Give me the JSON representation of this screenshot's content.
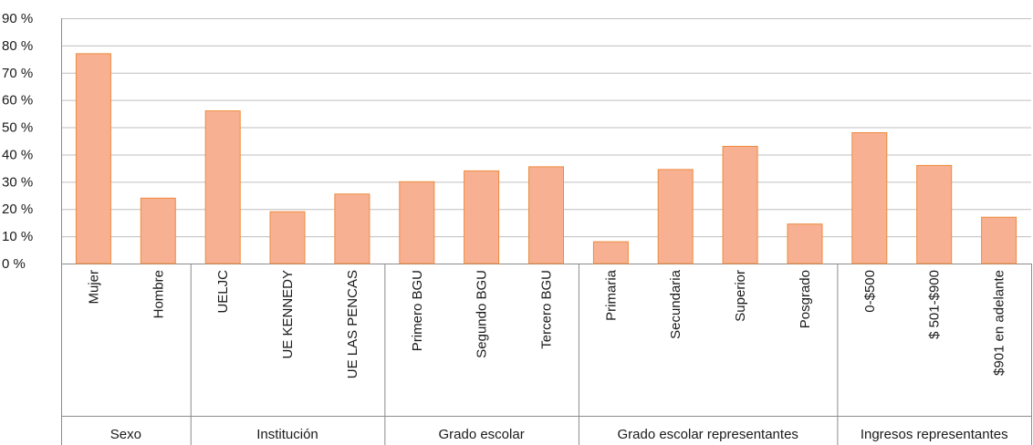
{
  "chart_data": {
    "type": "bar",
    "title": "",
    "xlabel": "",
    "ylabel": "",
    "ylim": [
      0,
      90
    ],
    "y_ticks": [
      {
        "value": 0,
        "label": "0 %"
      },
      {
        "value": 10,
        "label": "10 %"
      },
      {
        "value": 20,
        "label": "20 %"
      },
      {
        "value": 30,
        "label": "30 %"
      },
      {
        "value": 40,
        "label": "40 %"
      },
      {
        "value": 50,
        "label": "50 %"
      },
      {
        "value": 60,
        "label": "60 %"
      },
      {
        "value": 70,
        "label": "70 %"
      },
      {
        "value": 80,
        "label": "80 %"
      },
      {
        "value": 90,
        "label": "90 %"
      }
    ],
    "grid": true,
    "legend": "none",
    "colors": {
      "bar_fill": "#f7b192",
      "bar_stroke": "#ee8a3c",
      "grid": "#bfbfbf",
      "axis": "#8c8c8c"
    },
    "groups": [
      {
        "name": "Sexo",
        "categories": [
          "Mujer",
          "Hombre"
        ],
        "values": [
          77,
          24
        ]
      },
      {
        "name": "Institución",
        "categories": [
          "UELJC",
          "UE KENNEDY",
          "UE LAS PENCAS"
        ],
        "values": [
          56,
          19,
          25.5
        ]
      },
      {
        "name": "Grado escolar",
        "categories": [
          "Primero BGU",
          "Segundo BGU",
          "Tercero BGU"
        ],
        "values": [
          30,
          34,
          35.5
        ]
      },
      {
        "name": "Grado escolar representantes",
        "categories": [
          "Primaria",
          "Secundaria",
          "Superior",
          "Posgrado"
        ],
        "values": [
          8,
          34.5,
          43,
          14.5
        ]
      },
      {
        "name": "Ingresos representantes",
        "categories": [
          "0-$500",
          "$ 501-$900",
          "$901 en adelante"
        ],
        "values": [
          48,
          36,
          17
        ]
      }
    ]
  }
}
